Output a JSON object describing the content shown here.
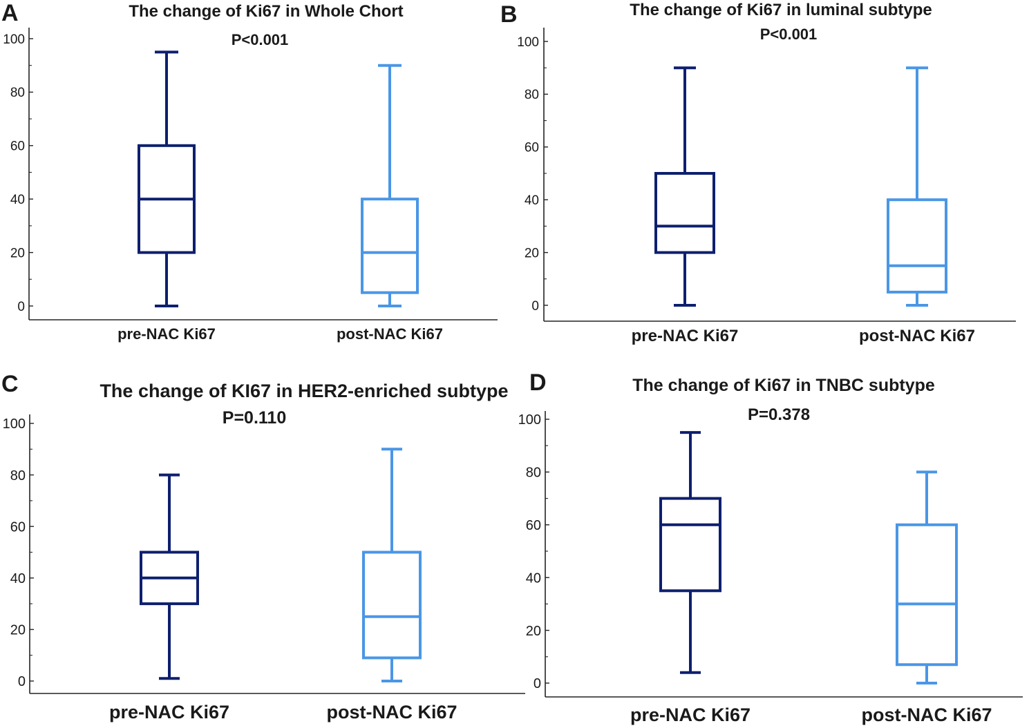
{
  "chart_data": [
    {
      "type": "box",
      "panel": "A",
      "title": "The change of Ki67 in Whole Chort",
      "subtitle": "P<0.001",
      "xlabel": "",
      "ylabel": "",
      "ylim": [
        0,
        100
      ],
      "yticks": [
        0,
        20,
        40,
        60,
        80,
        100
      ],
      "categories": [
        "pre-NAC Ki67",
        "post-NAC Ki67"
      ],
      "boxes": [
        {
          "min": 0,
          "q1": 20,
          "median": 40,
          "q3": 60,
          "max": 95,
          "color": "#0d1f6e"
        },
        {
          "min": 0,
          "q1": 5,
          "median": 20,
          "q3": 40,
          "max": 90,
          "color": "#4a96e6"
        }
      ]
    },
    {
      "type": "box",
      "panel": "B",
      "title": "The change of Ki67 in luminal subtype",
      "subtitle": "P<0.001",
      "xlabel": "",
      "ylabel": "",
      "ylim": [
        0,
        100
      ],
      "yticks": [
        0,
        20,
        40,
        60,
        80,
        100
      ],
      "categories": [
        "pre-NAC Ki67",
        "post-NAC Ki67"
      ],
      "boxes": [
        {
          "min": 0,
          "q1": 20,
          "median": 30,
          "q3": 50,
          "max": 90,
          "color": "#0d1f6e"
        },
        {
          "min": 0,
          "q1": 5,
          "median": 15,
          "q3": 40,
          "max": 90,
          "color": "#4a96e6"
        }
      ]
    },
    {
      "type": "box",
      "panel": "C",
      "title": "The change of KI67 in HER2-enriched subtype",
      "subtitle": "P=0.110",
      "xlabel": "",
      "ylabel": "",
      "ylim": [
        0,
        100
      ],
      "yticks": [
        0,
        20,
        40,
        60,
        80,
        100
      ],
      "categories": [
        "pre-NAC Ki67",
        "post-NAC Ki67"
      ],
      "boxes": [
        {
          "min": 1,
          "q1": 30,
          "median": 40,
          "q3": 50,
          "max": 80,
          "color": "#0d1f6e"
        },
        {
          "min": 0,
          "q1": 9,
          "median": 25,
          "q3": 50,
          "max": 90,
          "color": "#4a96e6"
        }
      ]
    },
    {
      "type": "box",
      "panel": "D",
      "title": "The change of Ki67 in TNBC subtype",
      "subtitle": "P=0.378",
      "xlabel": "",
      "ylabel": "",
      "ylim": [
        0,
        100
      ],
      "yticks": [
        0,
        20,
        40,
        60,
        80,
        100
      ],
      "categories": [
        "pre-NAC Ki67",
        "post-NAC Ki67"
      ],
      "boxes": [
        {
          "min": 4,
          "q1": 35,
          "median": 60,
          "q3": 70,
          "max": 95,
          "color": "#0d1f6e"
        },
        {
          "min": 0,
          "q1": 7,
          "median": 30,
          "q3": 60,
          "max": 80,
          "color": "#4a96e6"
        }
      ]
    }
  ]
}
